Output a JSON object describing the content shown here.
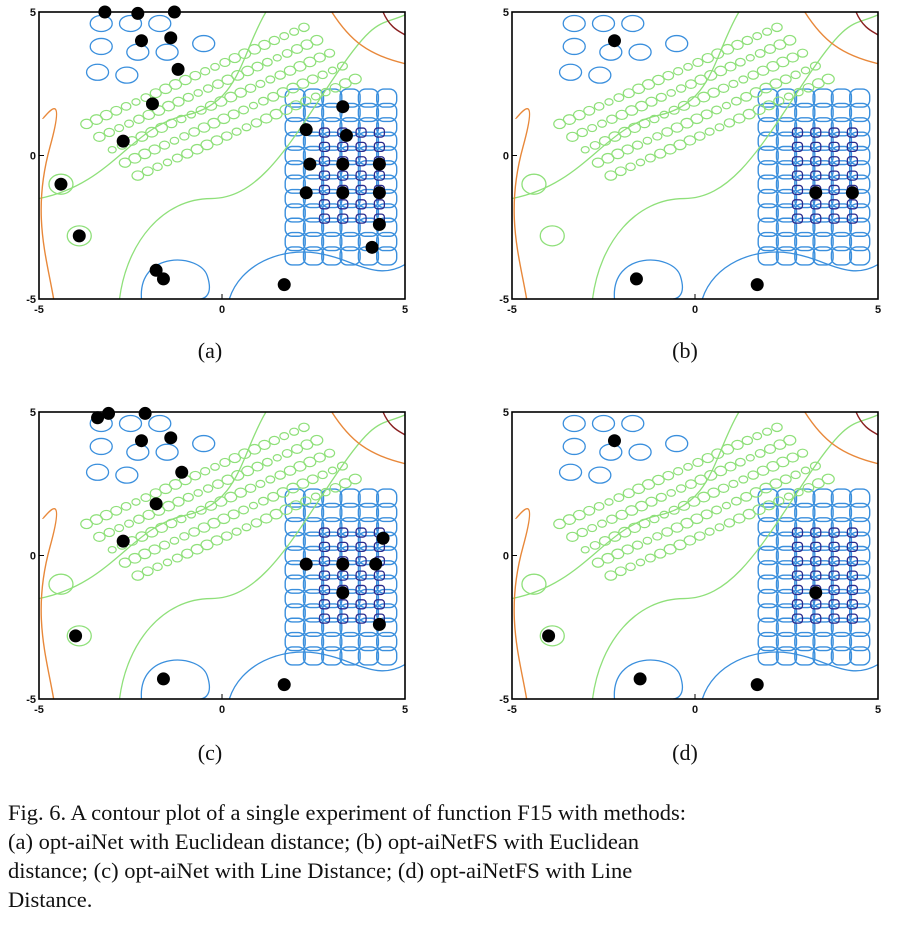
{
  "chart_data": [
    {
      "type": "scatter",
      "panel_label": "(a)",
      "xlim": [
        -5,
        5
      ],
      "ylim": [
        -5,
        5
      ],
      "x_ticks": [
        "-5",
        "0",
        "5"
      ],
      "y_ticks": [
        "5",
        "0",
        "-5"
      ],
      "points": [
        {
          "x": -3.2,
          "y": 5.0
        },
        {
          "x": -2.3,
          "y": 4.95
        },
        {
          "x": -1.3,
          "y": 5.0
        },
        {
          "x": -2.2,
          "y": 4.0
        },
        {
          "x": -1.4,
          "y": 4.1
        },
        {
          "x": -1.2,
          "y": 3.0
        },
        {
          "x": -1.9,
          "y": 1.8
        },
        {
          "x": -2.7,
          "y": 0.5
        },
        {
          "x": -4.4,
          "y": -1.0
        },
        {
          "x": -3.9,
          "y": -2.8
        },
        {
          "x": -1.8,
          "y": -4.0
        },
        {
          "x": -1.6,
          "y": -4.3
        },
        {
          "x": 1.7,
          "y": -4.5
        },
        {
          "x": 2.3,
          "y": 0.9
        },
        {
          "x": 3.3,
          "y": 1.7
        },
        {
          "x": 3.4,
          "y": 0.7
        },
        {
          "x": 2.4,
          "y": -0.3
        },
        {
          "x": 3.3,
          "y": -0.3
        },
        {
          "x": 4.3,
          "y": -0.3
        },
        {
          "x": 2.3,
          "y": -1.3
        },
        {
          "x": 3.3,
          "y": -1.3
        },
        {
          "x": 4.3,
          "y": -1.3
        },
        {
          "x": 4.3,
          "y": -2.4
        },
        {
          "x": 4.1,
          "y": -3.2
        }
      ]
    },
    {
      "type": "scatter",
      "panel_label": "(b)",
      "xlim": [
        -5,
        5
      ],
      "ylim": [
        -5,
        5
      ],
      "x_ticks": [
        "-5",
        "0",
        "5"
      ],
      "y_ticks": [
        "5",
        "0",
        "-5"
      ],
      "points": [
        {
          "x": -2.2,
          "y": 4.0
        },
        {
          "x": 3.3,
          "y": -1.3
        },
        {
          "x": 4.3,
          "y": -1.3
        },
        {
          "x": -1.6,
          "y": -4.3
        },
        {
          "x": 1.7,
          "y": -4.5
        }
      ]
    },
    {
      "type": "scatter",
      "panel_label": "(c)",
      "xlim": [
        -5,
        5
      ],
      "ylim": [
        -5,
        5
      ],
      "x_ticks": [
        "-5",
        "0",
        "5"
      ],
      "y_ticks": [
        "5",
        "0",
        "-5"
      ],
      "points": [
        {
          "x": -3.4,
          "y": 4.8
        },
        {
          "x": -3.1,
          "y": 4.95
        },
        {
          "x": -2.1,
          "y": 4.95
        },
        {
          "x": -2.2,
          "y": 4.0
        },
        {
          "x": -1.4,
          "y": 4.1
        },
        {
          "x": -1.1,
          "y": 2.9
        },
        {
          "x": -1.8,
          "y": 1.8
        },
        {
          "x": -2.7,
          "y": 0.5
        },
        {
          "x": -4.0,
          "y": -2.8
        },
        {
          "x": -1.6,
          "y": -4.3
        },
        {
          "x": 1.7,
          "y": -4.5
        },
        {
          "x": 2.3,
          "y": -0.3
        },
        {
          "x": 3.3,
          "y": -0.3
        },
        {
          "x": 4.2,
          "y": -0.3
        },
        {
          "x": 4.4,
          "y": 0.6
        },
        {
          "x": 3.3,
          "y": -1.3
        },
        {
          "x": 4.3,
          "y": -2.4
        }
      ]
    },
    {
      "type": "scatter",
      "panel_label": "(d)",
      "xlim": [
        -5,
        5
      ],
      "ylim": [
        -5,
        5
      ],
      "x_ticks": [
        "-5",
        "0",
        "5"
      ],
      "y_ticks": [
        "5",
        "0",
        "-5"
      ],
      "points": [
        {
          "x": -2.2,
          "y": 4.0
        },
        {
          "x": 3.3,
          "y": -1.3
        },
        {
          "x": -4.0,
          "y": -2.8
        },
        {
          "x": -1.5,
          "y": -4.3
        },
        {
          "x": 1.7,
          "y": -4.5
        }
      ]
    }
  ],
  "colors": {
    "green": "#8fe07a",
    "blue": "#3a8fdd",
    "navy": "#2a2a8c",
    "orange": "#e8883a",
    "maroon": "#8a2020",
    "marker": "#000000"
  },
  "caption": {
    "line1": "Fig. 6.   A contour plot of a single experiment of function F15 with methods:",
    "line2": "(a) opt-aiNet with Euclidean distance; (b) opt-aiNetFS with Euclidean",
    "line3": "distance; (c) opt-aiNet with Line Distance; (d) opt-aiNetFS with Line",
    "line4": "Distance."
  }
}
